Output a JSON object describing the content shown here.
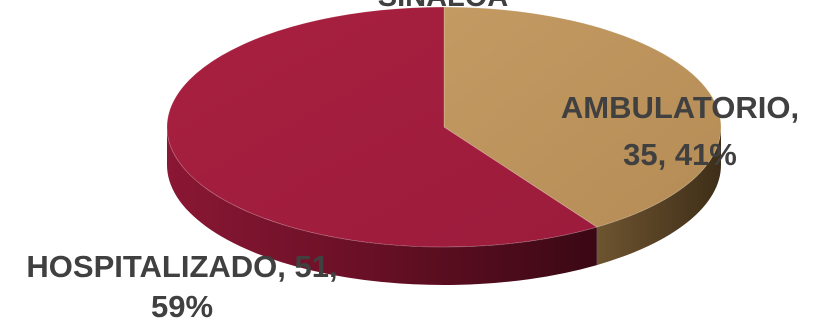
{
  "chart_data": {
    "type": "pie",
    "style": "3d",
    "title": "SINALOA",
    "categories": [
      "AMBULATORIO",
      "HOSPITALIZADO"
    ],
    "values": [
      35,
      51
    ],
    "percentages": [
      41,
      59
    ],
    "data_labels": [
      [
        "AMBULATORIO,",
        "35, 41%"
      ],
      [
        "HOSPITALIZADO, 51,",
        "59%"
      ]
    ],
    "colors": [
      "#b8915a",
      "#a01e3e"
    ],
    "legend": "none"
  }
}
